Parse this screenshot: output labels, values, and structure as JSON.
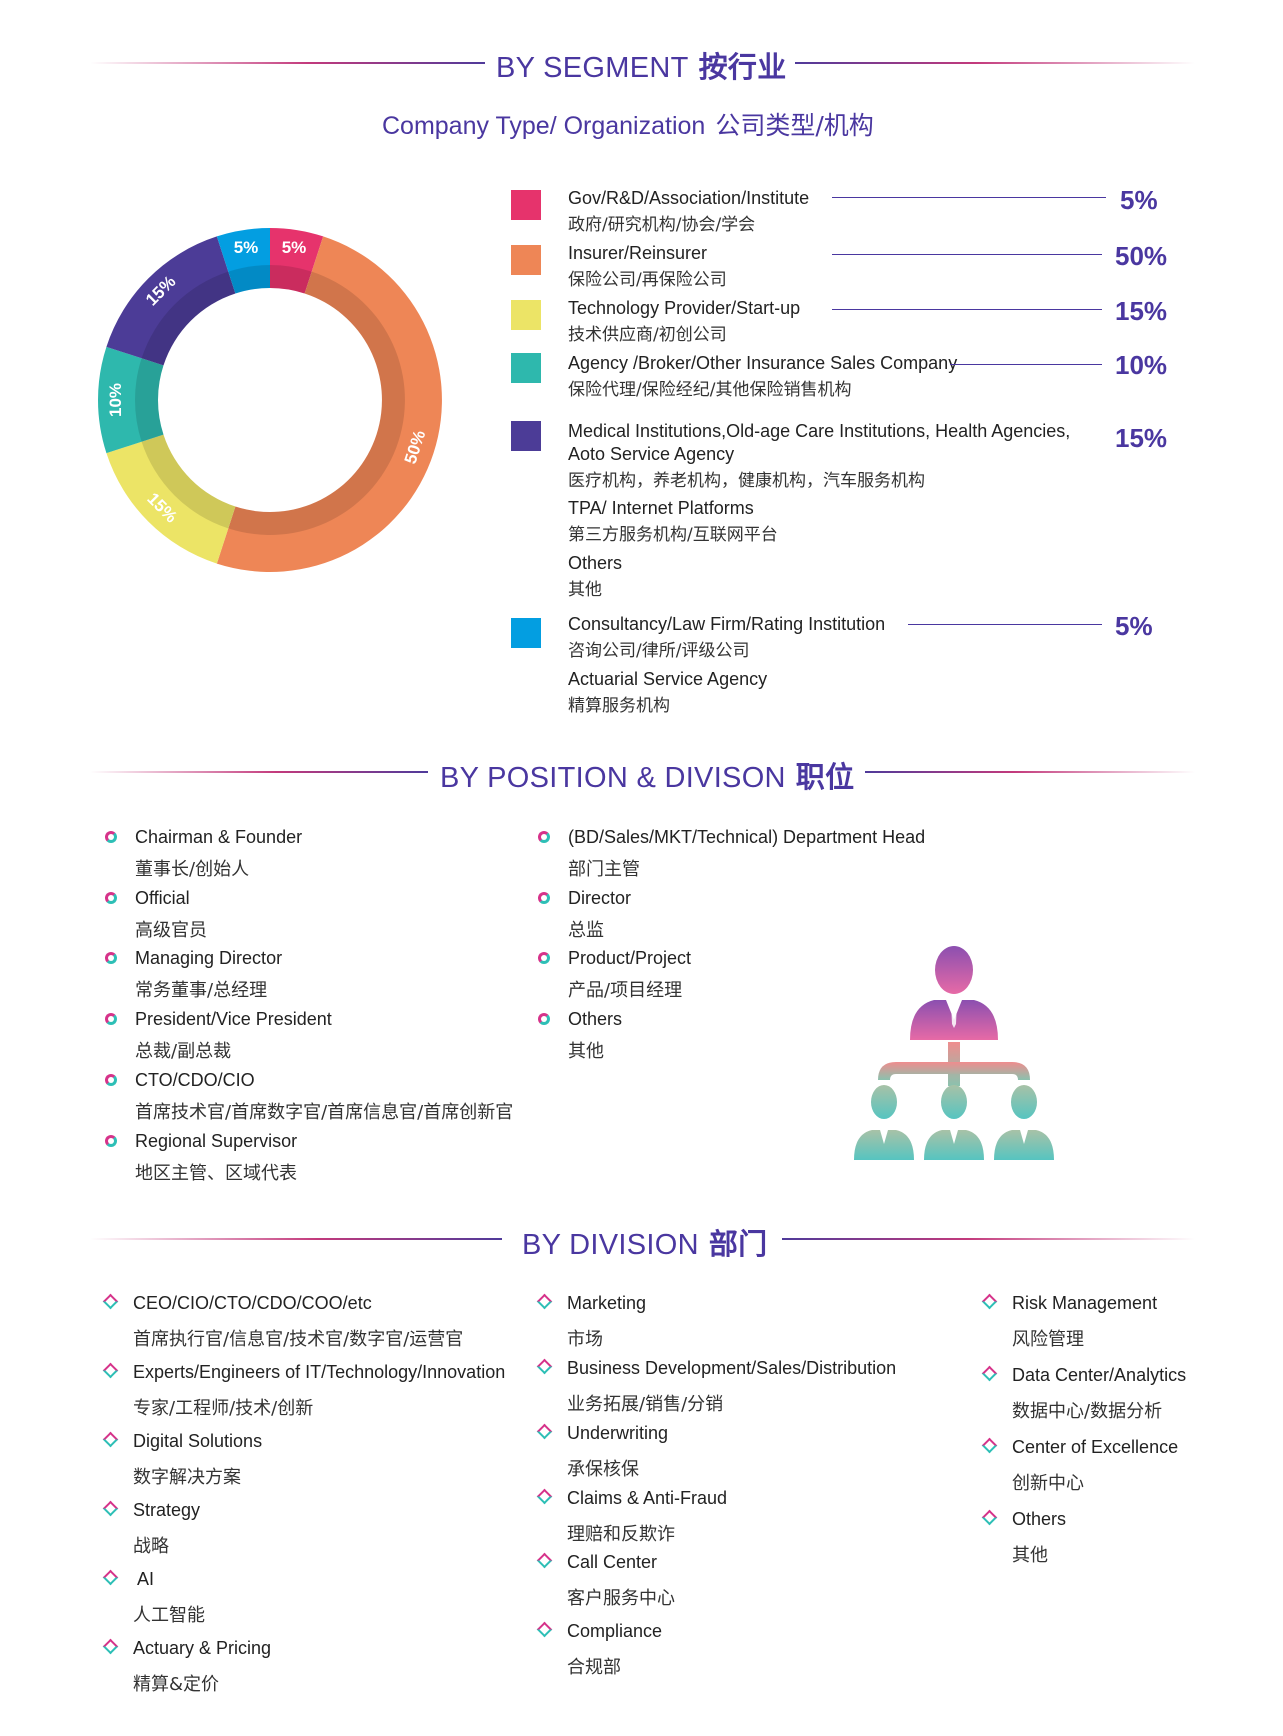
{
  "colors": {
    "accent": "#4a37a0",
    "gov": "#e6336c",
    "insurer": "#ee8656",
    "tech": "#ece466",
    "agency": "#2eb8ad",
    "medical": "#4c3c97",
    "consultancy": "#039ee1"
  },
  "segment": {
    "title_en": "BY SEGMENT",
    "title_zh": "按行业",
    "subtitle_en": "Company Type/ Organization",
    "subtitle_zh": "公司类型/机构"
  },
  "chart_data": {
    "type": "pie",
    "title": "Company Type/ Organization 公司类型/机构",
    "slices": [
      {
        "name": "Gov/R&D/Association/Institute",
        "value": 5,
        "label": "5%",
        "color": "#e6336c"
      },
      {
        "name": "Insurer/Reinsurer",
        "value": 50,
        "label": "50%",
        "color": "#ee8656"
      },
      {
        "name": "Technology Provider/Start-up",
        "value": 15,
        "label": "15%",
        "color": "#ece466"
      },
      {
        "name": "Agency /Broker/Other Insurance Sales Company",
        "value": 10,
        "label": "10%",
        "color": "#2eb8ad"
      },
      {
        "name": "Medical Institutions,Old-age Care Institutions, Health Agencies, Aoto Service Agency",
        "value": 15,
        "label": "15%",
        "color": "#4c3c97"
      },
      {
        "name": "Consultancy/Law Firm/Rating Institution",
        "value": 5,
        "label": "5%",
        "color": "#039ee1"
      }
    ]
  },
  "legend": [
    {
      "en": "Gov/R&D/Association/Institute",
      "zh": "政府/研究机构/协会/学会",
      "pct": "5%"
    },
    {
      "en": "Insurer/Reinsurer",
      "zh": "保险公司/再保险公司",
      "pct": "50%"
    },
    {
      "en": "Technology Provider/Start-up",
      "zh": "技术供应商/初创公司",
      "pct": "15%"
    },
    {
      "en": "Agency /Broker/Other Insurance Sales Company",
      "zh": "保险代理/保险经纪/其他保险销售机构",
      "pct": "10%"
    },
    {
      "en": "Medical Institutions,Old-age Care Institutions, Health Agencies,",
      "en2": "Aoto Service Agency",
      "zh": "医疗机构，养老机构，健康机构，汽车服务机构",
      "pct": "15%",
      "extra": [
        {
          "en": "TPA/ Internet Platforms",
          "zh": "第三方服务机构/互联网平台"
        },
        {
          "en": "Others",
          "zh": "其他"
        }
      ]
    },
    {
      "en": "Consultancy/Law Firm/Rating Institution",
      "zh": "咨询公司/律所/评级公司",
      "pct": "5%",
      "extra": [
        {
          "en": "Actuarial Service Agency",
          "zh": "精算服务机构"
        }
      ]
    }
  ],
  "position": {
    "title_en": "BY POSITION & DIVISON",
    "title_zh": "职位",
    "col1": [
      {
        "en": "Chairman & Founder",
        "zh": "董事长/创始人"
      },
      {
        "en": "Official",
        "zh": "高级官员"
      },
      {
        "en": "Managing Director",
        "zh": "常务董事/总经理"
      },
      {
        "en": "President/Vice President",
        "zh": "总裁/副总裁"
      },
      {
        "en": "CTO/CDO/CIO",
        "zh": "首席技术官/首席数字官/首席信息官/首席创新官"
      },
      {
        "en": "Regional Supervisor",
        "zh": "地区主管、区域代表"
      }
    ],
    "col2": [
      {
        "en": "(BD/Sales/MKT/Technical) Department Head",
        "zh": "部门主管"
      },
      {
        "en": "Director",
        "zh": "总监"
      },
      {
        "en": "Product/Project",
        "zh": "产品/项目经理"
      },
      {
        "en": "Others",
        "zh": "其他"
      }
    ]
  },
  "division": {
    "title_en": "BY DIVISION",
    "title_zh": "部门",
    "col1": [
      {
        "en": "CEO/CIO/CTO/CDO/COO/etc",
        "zh": "首席执行官/信息官/技术官/数字官/运营官"
      },
      {
        "en": "Experts/Engineers of IT/Technology/Innovation",
        "zh": "专家/工程师/技术/创新"
      },
      {
        "en": "Digital Solutions",
        "zh": "数字解决方案"
      },
      {
        "en": "Strategy",
        "zh": "战略"
      },
      {
        "en": " AI",
        "zh": "人工智能"
      },
      {
        "en": "Actuary & Pricing",
        "zh": "精算&定价"
      }
    ],
    "col2": [
      {
        "en": "Marketing",
        "zh": "市场"
      },
      {
        "en": "Business Development/Sales/Distribution",
        "zh": "业务拓展/销售/分销"
      },
      {
        "en": "Underwriting",
        "zh": "承保核保"
      },
      {
        "en": "Claims & Anti-Fraud",
        "zh": "理赔和反欺诈"
      },
      {
        "en": "Call Center",
        "zh": "客户服务中心"
      },
      {
        "en": "Compliance",
        "zh": "合规部"
      }
    ],
    "col3": [
      {
        "en": "Risk Management",
        "zh": "风险管理"
      },
      {
        "en": "Data Center/Analytics",
        "zh": "数据中心/数据分析"
      },
      {
        "en": "Center of Excellence",
        "zh": "创新中心"
      },
      {
        "en": "Others",
        "zh": "其他"
      }
    ]
  }
}
